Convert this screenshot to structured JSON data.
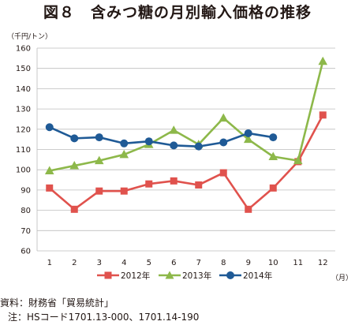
{
  "title": "図８　含みつ糖の月別輸入価格の推移",
  "y_unit": "（千円/トン）",
  "x_unit": "（月）",
  "notes": {
    "source": "資料：財務省「貿易統計」",
    "note": "注：HSコード1701.13-000、1701.14-190"
  },
  "chart_data": {
    "type": "line",
    "title": "図８　含みつ糖の月別輸入価格の推移",
    "ylabel": "（千円/トン）",
    "xlabel": "（月）",
    "categories": [
      "1",
      "2",
      "3",
      "4",
      "5",
      "6",
      "7",
      "8",
      "9",
      "10",
      "11",
      "12"
    ],
    "ylim": [
      60,
      160
    ],
    "yticks": [
      60,
      70,
      80,
      90,
      100,
      110,
      120,
      130,
      140,
      150,
      160
    ],
    "grid": true,
    "legend": "bottom",
    "series": [
      {
        "name": "2012年",
        "color": "#e0524d",
        "marker": "square",
        "values": [
          91,
          80.5,
          89.5,
          89.5,
          93,
          94.5,
          92.5,
          98.5,
          80.5,
          91,
          104,
          127
        ]
      },
      {
        "name": "2013年",
        "color": "#8db84a",
        "marker": "triangle",
        "values": [
          99.5,
          102,
          104.5,
          107.5,
          112.5,
          119.5,
          112.5,
          125.5,
          115,
          106.5,
          104.5,
          153.5
        ]
      },
      {
        "name": "2014年",
        "color": "#1f5a96",
        "marker": "circle",
        "values": [
          121,
          115.5,
          116,
          113,
          114,
          112,
          111.5,
          113.5,
          118,
          116,
          null,
          null
        ]
      }
    ]
  }
}
